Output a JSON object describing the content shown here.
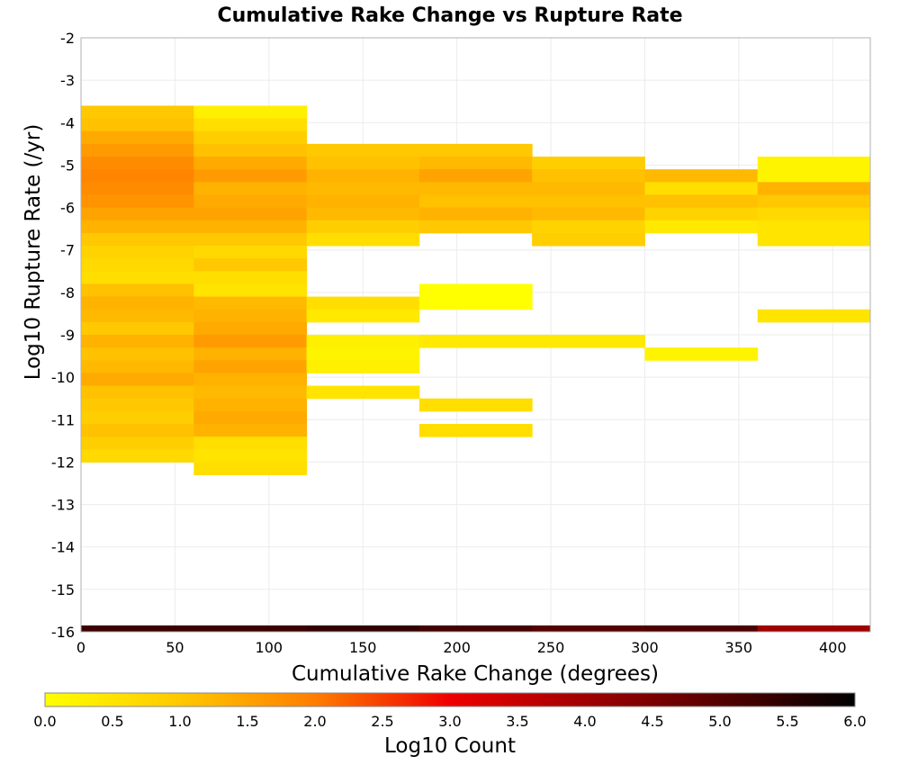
{
  "chart_data": {
    "type": "heatmap",
    "title": "Cumulative Rake Change vs Rupture Rate",
    "xlabel": "Cumulative Rake Change (degrees)",
    "ylabel": "Log10 Rupture Rate (/yr)",
    "xlim": [
      0,
      420
    ],
    "ylim": [
      -16,
      -2
    ],
    "x_ticks": [
      "0",
      "50",
      "100",
      "150",
      "200",
      "250",
      "300",
      "350",
      "400"
    ],
    "x_tick_values": [
      0,
      50,
      100,
      150,
      200,
      250,
      300,
      350,
      400
    ],
    "y_ticks": [
      "-2",
      "-3",
      "-4",
      "-5",
      "-6",
      "-7",
      "-8",
      "-9",
      "-10",
      "-11",
      "-12",
      "-13",
      "-14",
      "-15",
      "-16"
    ],
    "y_tick_values": [
      -2,
      -3,
      -4,
      -5,
      -6,
      -7,
      -8,
      -9,
      -10,
      -11,
      -12,
      -13,
      -14,
      -15,
      -16
    ],
    "x_bin_width": 60,
    "y_bin_height": 0.3,
    "grid": true,
    "colorbar": {
      "label": "Log10 Count",
      "range": [
        0,
        6
      ],
      "ticks": [
        "0.0",
        "0.5",
        "1.0",
        "1.5",
        "2.0",
        "2.5",
        "3.0",
        "3.5",
        "4.0",
        "4.5",
        "5.0",
        "5.5",
        "6.0"
      ],
      "tick_values": [
        0,
        0.5,
        1,
        1.5,
        2,
        2.5,
        3,
        3.5,
        4,
        4.5,
        5,
        5.5,
        6
      ],
      "stops": [
        {
          "v": 0,
          "color": "#ffff00"
        },
        {
          "v": 1,
          "color": "#ffc800"
        },
        {
          "v": 2,
          "color": "#ff7d00"
        },
        {
          "v": 3,
          "color": "#ee0000"
        },
        {
          "v": 4,
          "color": "#a00000"
        },
        {
          "v": 5,
          "color": "#550000"
        },
        {
          "v": 6,
          "color": "#000000"
        }
      ]
    },
    "cells": [
      {
        "x": 0,
        "col": [
          [
            -3.6,
            1.0
          ],
          [
            -3.9,
            1.1
          ],
          [
            -4.2,
            1.4
          ],
          [
            -4.5,
            1.6
          ],
          [
            -4.8,
            1.8
          ],
          [
            -5.1,
            1.9
          ],
          [
            -5.4,
            1.8
          ],
          [
            -5.7,
            1.7
          ],
          [
            -6.0,
            1.5
          ],
          [
            -6.3,
            1.3
          ],
          [
            -6.6,
            1.0
          ],
          [
            -6.9,
            0.8
          ],
          [
            -7.2,
            0.7
          ],
          [
            -7.5,
            0.6
          ],
          [
            -7.8,
            1.1
          ],
          [
            -8.1,
            1.3
          ],
          [
            -8.4,
            1.2
          ],
          [
            -8.7,
            1.0
          ],
          [
            -9.0,
            1.3
          ],
          [
            -9.3,
            1.1
          ],
          [
            -9.6,
            1.2
          ],
          [
            -9.9,
            1.4
          ],
          [
            -10.2,
            1.1
          ],
          [
            -10.5,
            1.0
          ],
          [
            -10.8,
            0.9
          ],
          [
            -11.1,
            1.1
          ],
          [
            -11.4,
            0.9
          ],
          [
            -11.7,
            0.7
          ],
          [
            -16.0,
            5.3
          ]
        ]
      },
      {
        "x": 60,
        "col": [
          [
            -3.6,
            0.3
          ],
          [
            -3.9,
            0.6
          ],
          [
            -4.2,
            0.9
          ],
          [
            -4.5,
            1.1
          ],
          [
            -4.8,
            1.4
          ],
          [
            -5.1,
            1.6
          ],
          [
            -5.4,
            1.3
          ],
          [
            -5.7,
            1.4
          ],
          [
            -6.0,
            1.5
          ],
          [
            -6.3,
            1.3
          ],
          [
            -6.6,
            1.0
          ],
          [
            -6.9,
            0.7
          ],
          [
            -7.2,
            1.0
          ],
          [
            -7.5,
            0.6
          ],
          [
            -7.8,
            0.5
          ],
          [
            -8.1,
            1.2
          ],
          [
            -8.4,
            1.3
          ],
          [
            -8.7,
            1.4
          ],
          [
            -9.0,
            1.6
          ],
          [
            -9.3,
            1.3
          ],
          [
            -9.6,
            1.5
          ],
          [
            -9.9,
            1.3
          ],
          [
            -10.2,
            1.2
          ],
          [
            -10.5,
            1.3
          ],
          [
            -10.8,
            1.4
          ],
          [
            -11.1,
            1.3
          ],
          [
            -11.4,
            0.6
          ],
          [
            -11.7,
            0.5
          ],
          [
            -12.0,
            0.6
          ],
          [
            -16.0,
            5.3
          ]
        ]
      },
      {
        "x": 120,
        "col": [
          [
            -4.5,
            1.0
          ],
          [
            -4.8,
            1.1
          ],
          [
            -5.1,
            1.3
          ],
          [
            -5.4,
            1.2
          ],
          [
            -5.7,
            1.3
          ],
          [
            -6.0,
            1.2
          ],
          [
            -6.3,
            0.9
          ],
          [
            -6.6,
            0.6
          ],
          [
            -8.1,
            0.6
          ],
          [
            -8.4,
            0.4
          ],
          [
            -9.0,
            0.3
          ],
          [
            -9.3,
            0.2
          ],
          [
            -9.6,
            0.3
          ],
          [
            -10.2,
            0.5
          ],
          [
            -16.0,
            5.4
          ]
        ]
      },
      {
        "x": 180,
        "col": [
          [
            -4.5,
            1.0
          ],
          [
            -4.8,
            1.2
          ],
          [
            -5.1,
            1.5
          ],
          [
            -5.4,
            1.2
          ],
          [
            -5.7,
            1.1
          ],
          [
            -6.0,
            1.3
          ],
          [
            -6.3,
            1.0
          ],
          [
            -7.8,
            0.0
          ],
          [
            -8.1,
            0.0
          ],
          [
            -9.0,
            0.4
          ],
          [
            -10.5,
            0.6
          ],
          [
            -11.1,
            0.6
          ],
          [
            -16.0,
            5.2
          ]
        ]
      },
      {
        "x": 240,
        "col": [
          [
            -4.8,
            0.9
          ],
          [
            -5.1,
            1.1
          ],
          [
            -5.4,
            1.2
          ],
          [
            -5.7,
            1.1
          ],
          [
            -6.0,
            1.2
          ],
          [
            -6.3,
            0.8
          ],
          [
            -6.6,
            0.9
          ],
          [
            -9.0,
            0.4
          ],
          [
            -16.0,
            5.0
          ]
        ]
      },
      {
        "x": 300,
        "col": [
          [
            -5.1,
            1.2
          ],
          [
            -5.4,
            0.6
          ],
          [
            -5.7,
            1.1
          ],
          [
            -6.0,
            0.8
          ],
          [
            -6.3,
            0.4
          ],
          [
            -9.3,
            0.2
          ],
          [
            -16.0,
            5.1
          ]
        ]
      },
      {
        "x": 360,
        "col": [
          [
            -4.8,
            0.2
          ],
          [
            -5.1,
            0.2
          ],
          [
            -5.4,
            1.3
          ],
          [
            -5.7,
            1.0
          ],
          [
            -6.0,
            0.7
          ],
          [
            -6.3,
            0.5
          ],
          [
            -6.6,
            0.5
          ],
          [
            -8.4,
            0.5
          ],
          [
            -16.0,
            4.0
          ]
        ]
      }
    ]
  }
}
